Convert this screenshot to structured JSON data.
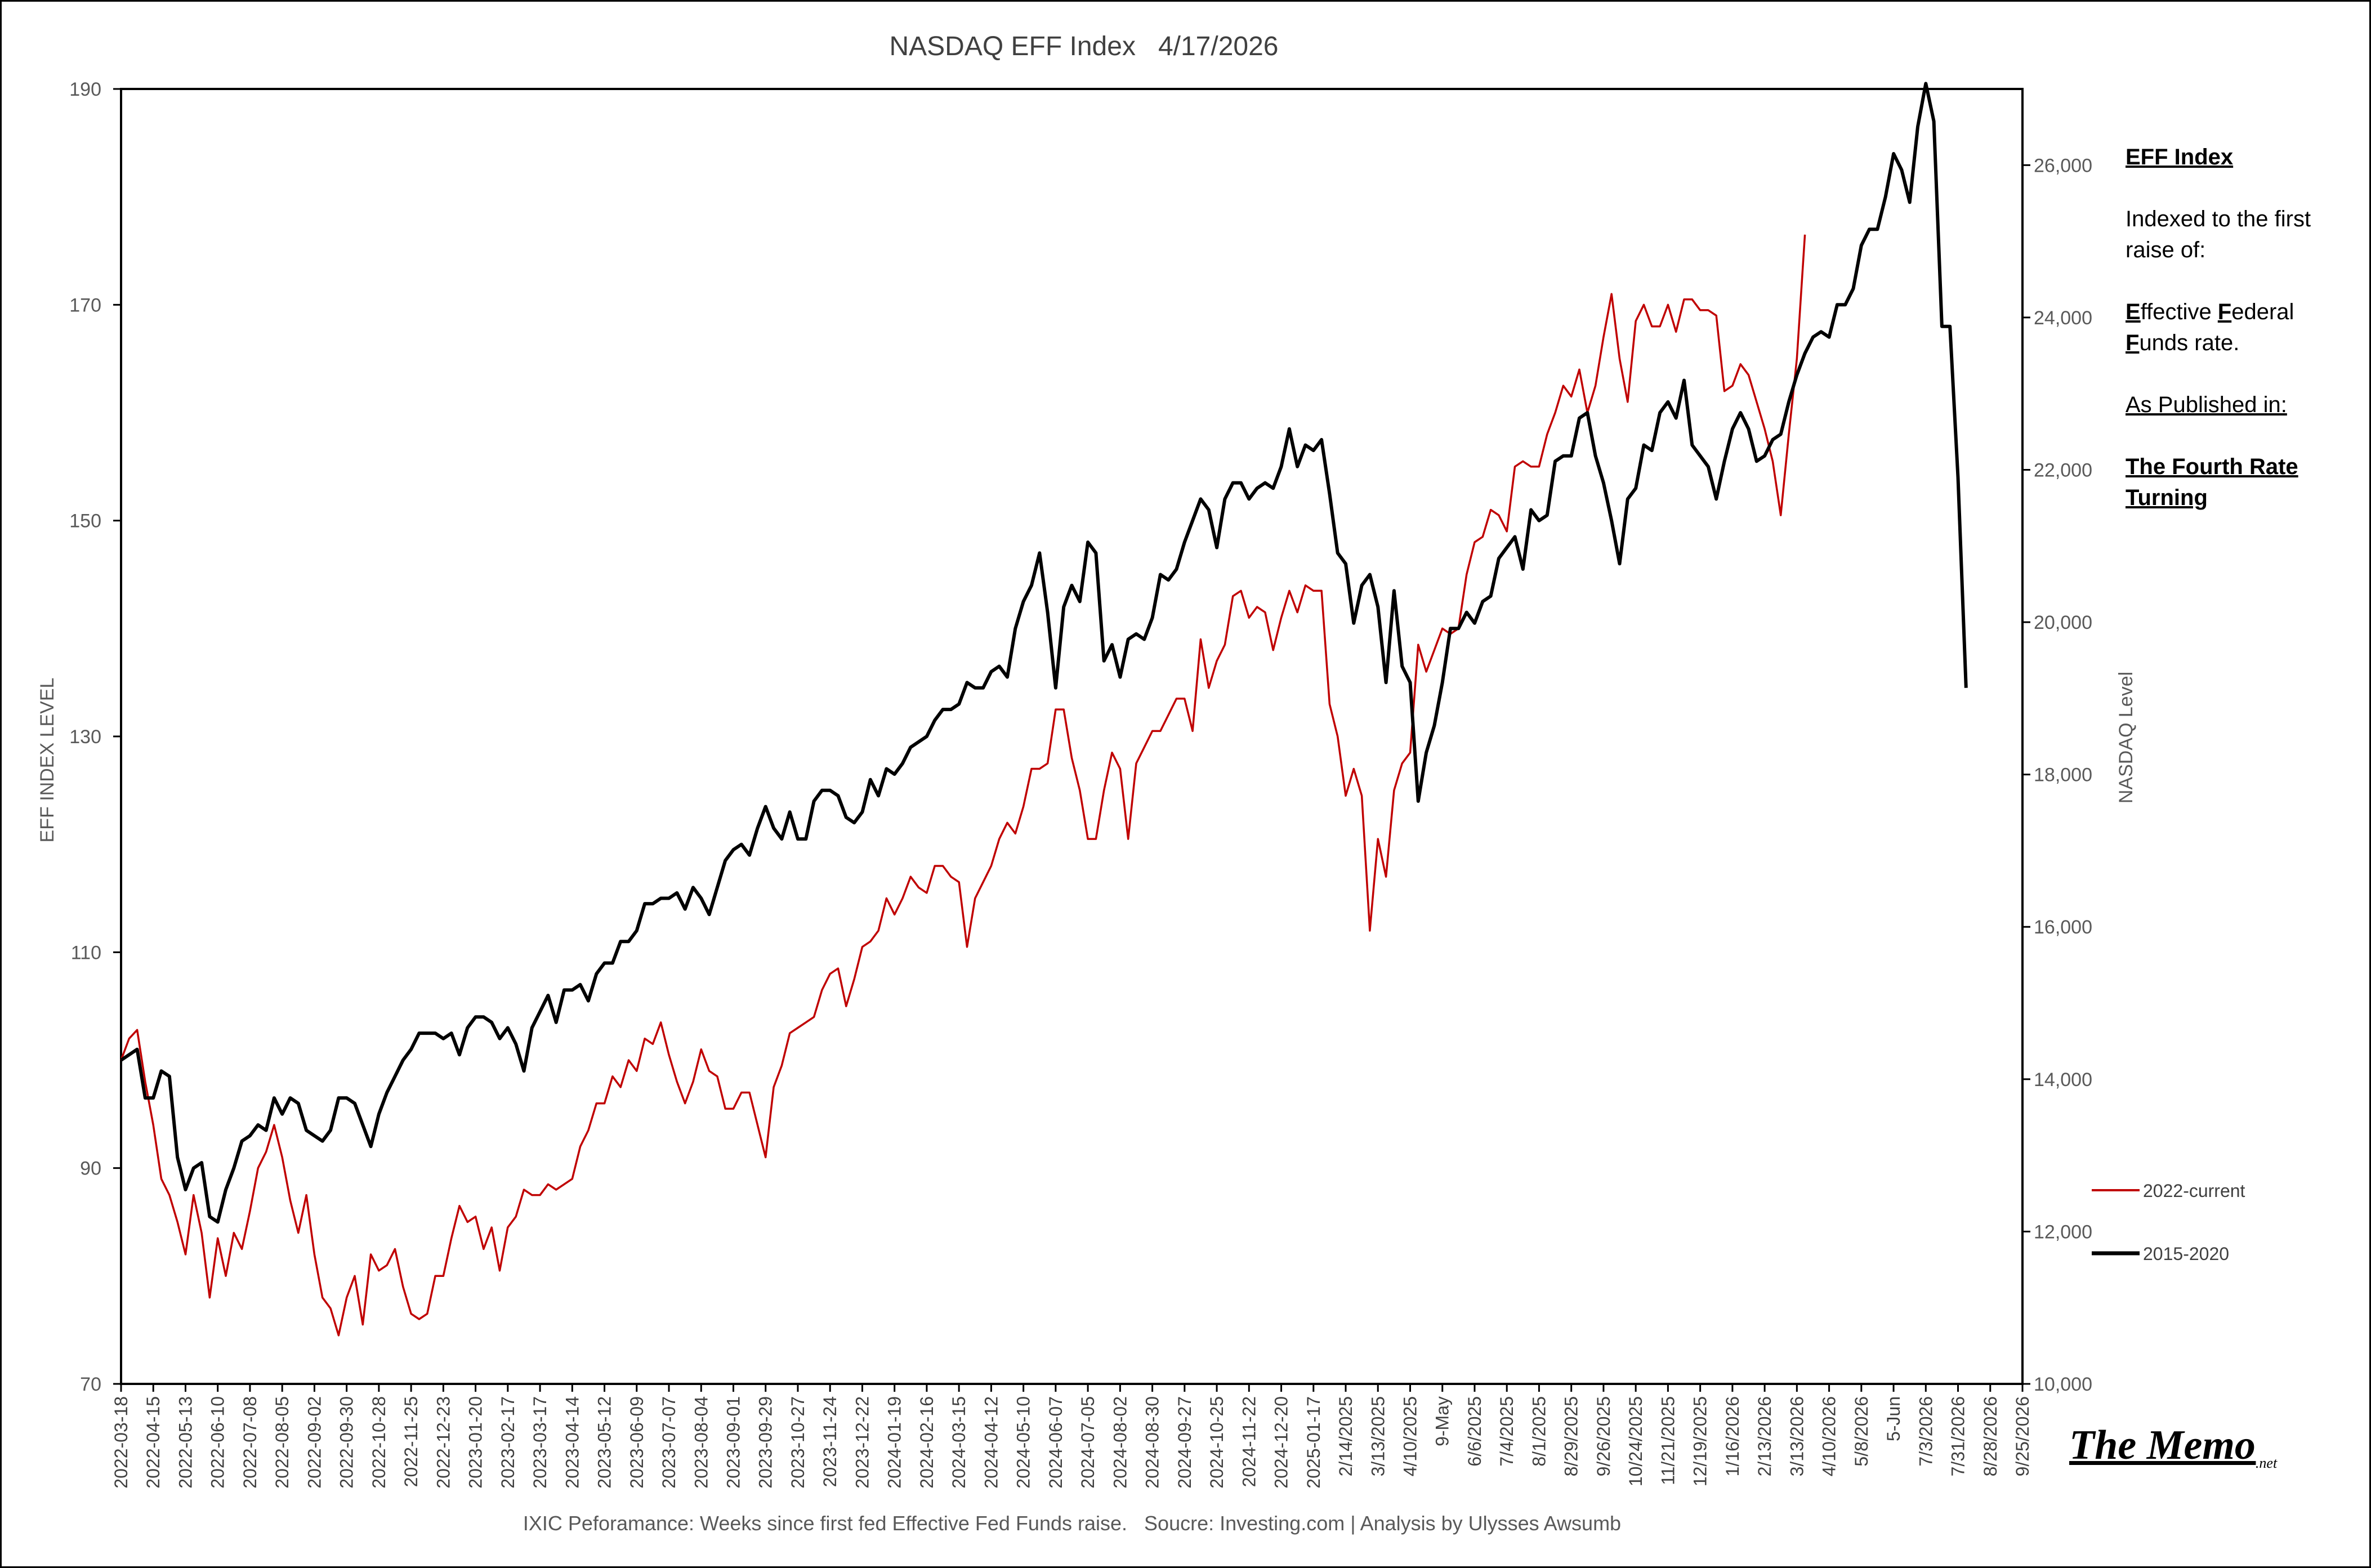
{
  "chart_data": {
    "type": "line",
    "title": "NASDAQ EFF Index   4/17/2026",
    "ylabel_left": "EFF INDEX LEVEL",
    "ylabel_right": "NASDAQ Level",
    "caption": "IXIC Peforamance: Weeks since first fed Effective Fed Funds raise.   Soucre: Investing.com | Analysis by Ulysses Awsumb",
    "y_left": {
      "min": 70,
      "max": 190,
      "ticks": [
        "70",
        "90",
        "110",
        "130",
        "150",
        "170",
        "190"
      ]
    },
    "y_right": {
      "min": 10000,
      "max": 27000,
      "ticks": [
        "10,000",
        "12,000",
        "14,000",
        "16,000",
        "18,000",
        "20,000",
        "22,000",
        "24,000",
        "26,000"
      ]
    },
    "x_tick_labels": [
      "2022-03-18",
      "2022-04-15",
      "2022-05-13",
      "2022-06-10",
      "2022-07-08",
      "2022-08-05",
      "2022-09-02",
      "2022-09-30",
      "2022-10-28",
      "2022-11-25",
      "2022-12-23",
      "2023-01-20",
      "2023-02-17",
      "2023-03-17",
      "2023-04-14",
      "2023-05-12",
      "2023-06-09",
      "2023-07-07",
      "2023-08-04",
      "2023-09-01",
      "2023-09-29",
      "2023-10-27",
      "2023-11-24",
      "2023-12-22",
      "2024-01-19",
      "2024-02-16",
      "2024-03-15",
      "2024-04-12",
      "2024-05-10",
      "2024-06-07",
      "2024-07-05",
      "2024-08-02",
      "2024-08-30",
      "2024-09-27",
      "2024-10-25",
      "2024-11-22",
      "2024-12-20",
      "2025-01-17",
      "2/14/2025",
      "3/13/2025",
      "4/10/2025",
      "9-May",
      "6/6/2025",
      "7/4/2025",
      "8/1/2025",
      "8/29/2025",
      "9/26/2025",
      "10/24/2025",
      "11/21/2025",
      "12/19/2025",
      "1/16/2026",
      "2/13/2026",
      "3/13/2026",
      "4/10/2026",
      "5/8/2026",
      "5-Jun",
      "7/3/2026",
      "7/31/2026",
      "8/28/2026",
      "9/25/2026"
    ],
    "legend_position": "right",
    "grid": false,
    "series": [
      {
        "name": "2022-current",
        "color": "#c00000",
        "axis": "left",
        "x_week_step": 1,
        "values": [
          100,
          102,
          102.8,
          98,
          94,
          89,
          87.5,
          85,
          82,
          87.5,
          84,
          78,
          83.5,
          80,
          84,
          82.5,
          86,
          90,
          91.5,
          94,
          91,
          87,
          84,
          87.5,
          82,
          78,
          77,
          74.5,
          78,
          80,
          75.5,
          82,
          80.5,
          81,
          82.5,
          79,
          76.5,
          76,
          76.5,
          80,
          80,
          83.5,
          86.5,
          85,
          85.5,
          82.5,
          84.5,
          80.5,
          84.5,
          85.5,
          88,
          87.5,
          87.5,
          88.5,
          88,
          88.5,
          89,
          92,
          93.5,
          96,
          96,
          98.5,
          97.5,
          100,
          99,
          102,
          101.5,
          103.5,
          100.5,
          98,
          96,
          98,
          101,
          99,
          98.5,
          95.5,
          95.5,
          97,
          97,
          94,
          91,
          97.5,
          99.5,
          102.5,
          103,
          103.5,
          104,
          106.5,
          108,
          108.5,
          105,
          107.5,
          110.5,
          111,
          112,
          115,
          113.5,
          115,
          117,
          116,
          115.5,
          118,
          118,
          117,
          116.5,
          110.5,
          115,
          116.5,
          118,
          120.5,
          122,
          121,
          123.5,
          127,
          127,
          127.5,
          132.5,
          132.5,
          128,
          125,
          120.5,
          120.5,
          125,
          128.5,
          127,
          120.5,
          127.5,
          129,
          130.5,
          130.5,
          132,
          133.5,
          133.5,
          130.5,
          139,
          134.5,
          137,
          138.5,
          143,
          143.5,
          141,
          142,
          141.5,
          138,
          141,
          143.5,
          141.5,
          144,
          143.5,
          143.5,
          133,
          130,
          124.5,
          127,
          124.5,
          112,
          120.5,
          117,
          125,
          127.5,
          128.5,
          138.5,
          136,
          138,
          140,
          139.5,
          140,
          145,
          148,
          148.5,
          151,
          150.5,
          149,
          155,
          155.5,
          155,
          155,
          158,
          160,
          162.5,
          161.5,
          164,
          160,
          162.5,
          167,
          171,
          165,
          161,
          168.5,
          170,
          168,
          168,
          170,
          167.5,
          170.5,
          170.5,
          169.5,
          169.5,
          169,
          162,
          162.5,
          164.5,
          163.5,
          161,
          158.5,
          155.5,
          150.5,
          158,
          165,
          176.5
        ]
      },
      {
        "name": "2015-2020",
        "color": "#000000",
        "axis": "left",
        "x_week_step": 1,
        "values": [
          100,
          100.5,
          101,
          96.5,
          96.5,
          99,
          98.5,
          91,
          88,
          90,
          90.5,
          85.5,
          85,
          88,
          90,
          92.5,
          93,
          94,
          93.5,
          96.5,
          95,
          96.5,
          96,
          93.5,
          93,
          92.5,
          93.5,
          96.5,
          96.5,
          96,
          94,
          92,
          95,
          97,
          98.5,
          100,
          101,
          102.5,
          102.5,
          102.5,
          102,
          102.5,
          100.5,
          103,
          104,
          104,
          103.5,
          102,
          103,
          101.5,
          99,
          103,
          104.5,
          106,
          103.5,
          106.5,
          106.5,
          107,
          105.5,
          108,
          109,
          109,
          111,
          111,
          112,
          114.5,
          114.5,
          115,
          115,
          115.5,
          114,
          116,
          115,
          113.5,
          116,
          118.5,
          119.5,
          120,
          119,
          121.5,
          123.5,
          121.5,
          120.5,
          123,
          120.5,
          120.5,
          124,
          125,
          125,
          124.5,
          122.5,
          122,
          123,
          126,
          124.5,
          127,
          126.5,
          127.5,
          129,
          129.5,
          130,
          131.5,
          132.5,
          132.5,
          133,
          135,
          134.5,
          134.5,
          136,
          136.5,
          135.5,
          140,
          142.5,
          144,
          147,
          141.5,
          134.5,
          142,
          144,
          142.5,
          148,
          147,
          137,
          138.5,
          135.5,
          139,
          139.5,
          139,
          141,
          145,
          144.5,
          145.5,
          148,
          150,
          152,
          151,
          147.5,
          152,
          153.5,
          153.5,
          152,
          153,
          153.5,
          153,
          155,
          158.5,
          155,
          157,
          156.5,
          157.5,
          152.5,
          147,
          146,
          140.5,
          144,
          145,
          142,
          135,
          143.5,
          136.5,
          135,
          124,
          128.5,
          131,
          135,
          140,
          140,
          141.5,
          140.5,
          142.5,
          143,
          146.5,
          147.5,
          148.5,
          145.5,
          151,
          150,
          150.5,
          155.5,
          156,
          156,
          159.5,
          160,
          156,
          153.5,
          150,
          146,
          152,
          153,
          157,
          156.5,
          160,
          161,
          159.5,
          163,
          157,
          156,
          155,
          152,
          155.5,
          158.5,
          160,
          158.5,
          155.5,
          156,
          157.5,
          158,
          161,
          163.5,
          165.5,
          167,
          167.5,
          167,
          170,
          170,
          171.5,
          175.5,
          177,
          177,
          180,
          184,
          182.5,
          179.5,
          186.5,
          190.5,
          187,
          168,
          168,
          154,
          134.5
        ]
      }
    ]
  },
  "annotation": {
    "title": "EFF Index",
    "line1a": "Indexed to the first",
    "line1b": "raise of:",
    "eff_e": "E",
    "eff_rest1": "ffective ",
    "eff_f": "F",
    "eff_rest2": "ederal",
    "eff_funds_f": "F",
    "eff_funds_rest": "unds rate.",
    "published": "As Published in:",
    "pub_title1": "The Fourth Rate",
    "pub_title2": "Turning"
  },
  "logo": {
    "main": "The Memo",
    "suffix": ".net"
  }
}
